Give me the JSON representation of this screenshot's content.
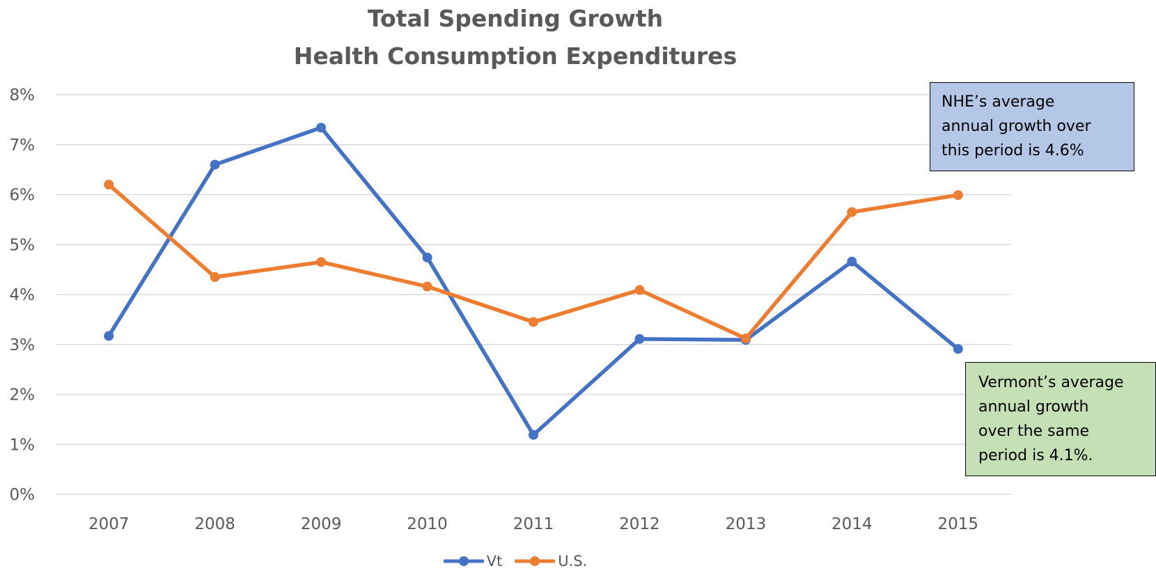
{
  "chart_data": {
    "type": "line",
    "title": [
      "Total Spending Growth",
      "Health Consumption Expenditures"
    ],
    "categories": [
      "2007",
      "2008",
      "2009",
      "2010",
      "2011",
      "2012",
      "2013",
      "2014",
      "2015"
    ],
    "series": [
      {
        "name": "Vt",
        "color": "#4472C4",
        "values": [
          3.17,
          6.6,
          7.34,
          4.74,
          1.19,
          3.11,
          3.09,
          4.66,
          2.91
        ]
      },
      {
        "name": "U.S.",
        "color": "#ED7D31",
        "values": [
          6.2,
          4.35,
          4.65,
          4.16,
          3.45,
          4.09,
          3.12,
          5.65,
          5.99
        ]
      }
    ],
    "ylim": [
      0,
      8
    ],
    "yticks": [
      "0%",
      "1%",
      "2%",
      "3%",
      "4%",
      "5%",
      "6%",
      "7%",
      "8%"
    ],
    "grid": true,
    "legend_position": "bottom",
    "annotations": [
      {
        "lines": [
          "NHE’s average",
          "annual growth over",
          "this period is 4.6%"
        ],
        "background": "#B4C7E7"
      },
      {
        "lines": [
          "Vermont’s average",
          "annual growth",
          "over the same",
          "period is 4.1%."
        ],
        "background": "#C5E0B4"
      }
    ]
  }
}
